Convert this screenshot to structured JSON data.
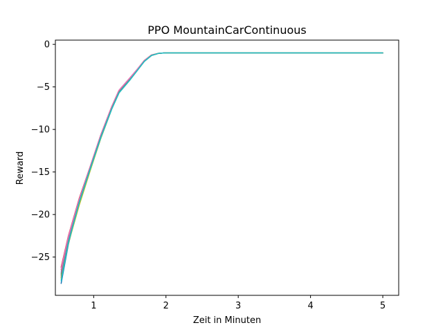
{
  "chart_data": {
    "type": "line",
    "title": "PPO MountainCarContinuous",
    "xlabel": "Zeit in Minuten",
    "ylabel": "Reward",
    "xlim": [
      0.47,
      5.22
    ],
    "ylim": [
      -29.5,
      0.5
    ],
    "xticks": [
      1,
      2,
      3,
      4,
      5
    ],
    "yticks": [
      0,
      -5,
      -10,
      -15,
      -20,
      -25
    ],
    "ytick_labels": [
      "0",
      "−5",
      "−10",
      "−15",
      "−20",
      "−25"
    ],
    "grid": false,
    "x": [
      0.55,
      0.65,
      0.8,
      0.95,
      1.1,
      1.25,
      1.35,
      1.5,
      1.6,
      1.7,
      1.8,
      1.9,
      2.0,
      2.5,
      3.0,
      4.0,
      5.0
    ],
    "series": [
      {
        "color": "#1f77b4",
        "values": [
          -28.1,
          -23.5,
          -18.5,
          -14.8,
          -11.0,
          -7.6,
          -5.7,
          -4.2,
          -3.1,
          -2.0,
          -1.3,
          -1.05,
          -1.0,
          -1.0,
          -1.0,
          -1.0,
          -1.0
        ]
      },
      {
        "color": "#ff7f0e",
        "values": [
          -26.5,
          -22.7,
          -18.2,
          -14.5,
          -10.7,
          -7.4,
          -5.5,
          -4.0,
          -3.0,
          -1.9,
          -1.25,
          -1.05,
          -1.0,
          -1.0,
          -1.0,
          -1.0,
          -1.0
        ]
      },
      {
        "color": "#2ca02c",
        "values": [
          -27.0,
          -23.0,
          -18.4,
          -14.6,
          -10.8,
          -7.5,
          -5.6,
          -4.1,
          -3.05,
          -1.95,
          -1.3,
          -1.05,
          -1.0,
          -1.0,
          -1.0,
          -1.0,
          -1.0
        ]
      },
      {
        "color": "#d62728",
        "values": [
          -26.2,
          -22.5,
          -18.1,
          -14.4,
          -10.6,
          -7.3,
          -5.4,
          -3.95,
          -2.95,
          -1.9,
          -1.25,
          -1.05,
          -1.0,
          -1.0,
          -1.0,
          -1.0,
          -1.0
        ]
      },
      {
        "color": "#9467bd",
        "values": [
          -26.8,
          -22.8,
          -18.3,
          -14.5,
          -10.7,
          -7.4,
          -5.5,
          -4.0,
          -3.0,
          -1.95,
          -1.3,
          -1.05,
          -1.0,
          -1.0,
          -1.0,
          -1.0,
          -1.0
        ]
      },
      {
        "color": "#8c564b",
        "values": [
          -27.4,
          -23.2,
          -18.6,
          -14.7,
          -10.9,
          -7.5,
          -5.6,
          -4.1,
          -3.05,
          -2.0,
          -1.3,
          -1.05,
          -1.0,
          -1.0,
          -1.0,
          -1.0,
          -1.0
        ]
      },
      {
        "color": "#e377c2",
        "values": [
          -26.4,
          -22.6,
          -18.2,
          -14.4,
          -10.6,
          -7.3,
          -5.4,
          -3.95,
          -2.95,
          -1.9,
          -1.25,
          -1.05,
          -1.0,
          -1.0,
          -1.0,
          -1.0,
          -1.0
        ]
      },
      {
        "color": "#7f7f7f",
        "values": [
          -27.2,
          -23.1,
          -18.5,
          -14.6,
          -10.8,
          -7.5,
          -5.6,
          -4.15,
          -3.1,
          -2.0,
          -1.3,
          -1.05,
          -1.0,
          -1.0,
          -1.0,
          -1.0,
          -1.0
        ]
      },
      {
        "color": "#bcbd22",
        "values": [
          -27.6,
          -23.4,
          -18.9,
          -14.9,
          -11.0,
          -7.6,
          -5.7,
          -4.2,
          -3.1,
          -2.0,
          -1.3,
          -1.05,
          -1.0,
          -1.0,
          -1.0,
          -1.0,
          -1.0
        ]
      },
      {
        "color": "#17becf",
        "values": [
          -27.8,
          -23.3,
          -18.6,
          -14.7,
          -10.9,
          -7.6,
          -5.7,
          -4.2,
          -3.1,
          -2.0,
          -1.3,
          -1.05,
          -1.0,
          -1.0,
          -1.0,
          -1.0,
          -1.0
        ]
      }
    ]
  }
}
